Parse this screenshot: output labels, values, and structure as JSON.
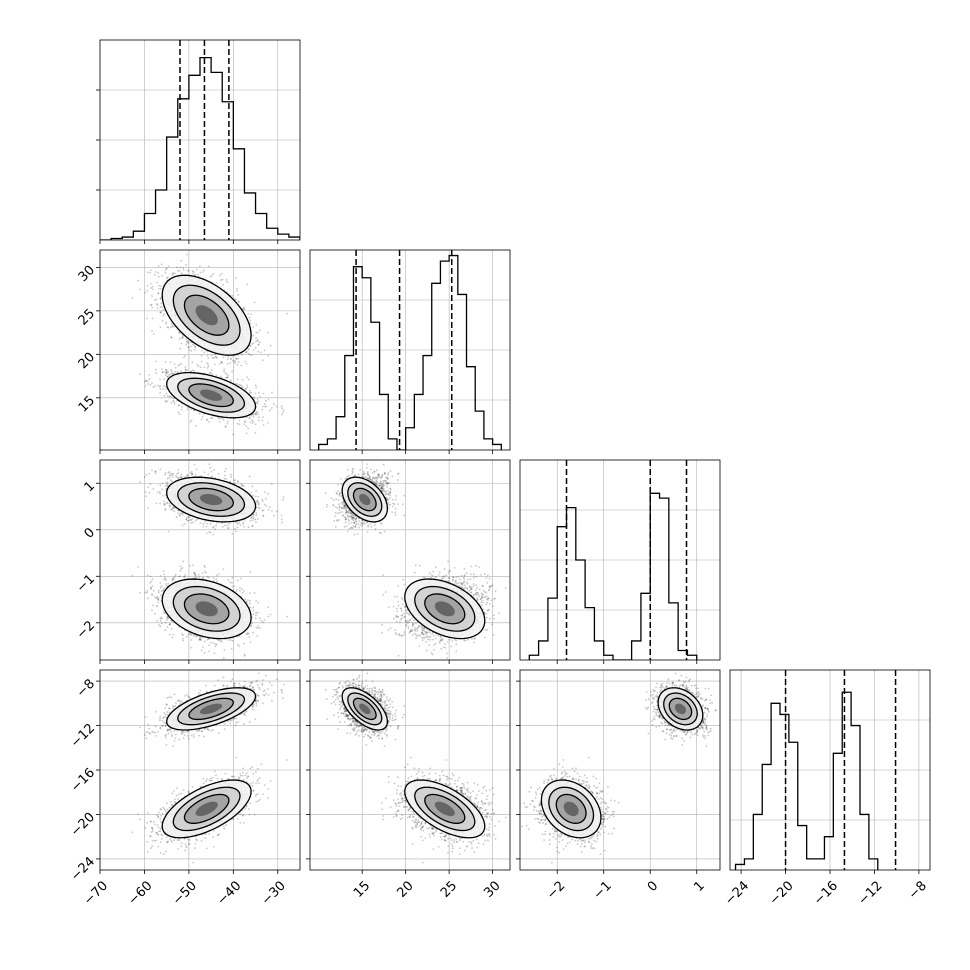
{
  "chart_data": {
    "type": "corner",
    "parameters": 4,
    "histograms": [
      {
        "param": 0,
        "xlim": [
          -70,
          -25
        ],
        "bins_start": -70,
        "bin_width": 2.5,
        "counts": [
          0,
          0.5,
          1,
          3,
          9,
          17,
          35,
          48,
          56,
          62,
          57,
          47,
          31,
          16,
          9,
          4,
          2,
          1
        ],
        "ymax": 68,
        "quantiles": [
          -52,
          -46.5,
          -41
        ]
      },
      {
        "param": 1,
        "xlim": [
          9,
          32
        ],
        "bins_start": 10,
        "bin_width": 1,
        "counts": [
          1,
          2,
          6,
          17,
          33,
          31,
          23,
          10,
          2,
          0,
          4,
          10,
          17,
          30,
          34,
          35,
          28,
          15,
          7,
          2,
          1
        ],
        "ymax": 36,
        "quantiles": [
          14.3,
          19.3,
          25.3
        ]
      },
      {
        "param": 2,
        "xlim": [
          -2.8,
          1.5
        ],
        "bins_start": -2.6,
        "bin_width": 0.2,
        "counts": [
          1,
          4,
          13,
          28,
          32,
          21,
          11,
          4,
          1,
          0,
          0,
          4,
          14,
          35,
          34,
          12,
          2,
          1
        ],
        "ymax": 42,
        "quantiles": [
          -1.8,
          0,
          0.78
        ]
      },
      {
        "param": 3,
        "xlim": [
          -25,
          -7
        ],
        "bins_start": -24.5,
        "bin_width": 0.8,
        "counts": [
          1,
          2,
          10,
          19,
          30,
          28,
          23,
          8,
          2,
          2,
          6,
          21,
          32,
          26,
          10,
          2
        ],
        "ymax": 36,
        "quantiles": [
          -20,
          -14.7,
          -10.1
        ]
      }
    ],
    "modes": [
      {
        "center": [
          -46,
          24.5,
          -1.7,
          -19.5
        ],
        "sd": [
          5,
          2.3,
          0.32,
          1.3
        ]
      },
      {
        "center": [
          -45,
          15.3,
          0.65,
          -10.5
        ],
        "sd": [
          5,
          1.3,
          0.24,
          0.95
        ]
      }
    ],
    "correlations": {
      "1_0": -0.5,
      "2_0": -0.3,
      "2_1": -0.4,
      "3_0": 0.6,
      "3_1": -0.6,
      "3_2": -0.3
    },
    "axes": [
      {
        "param": 0,
        "lim": [
          -70,
          -25
        ],
        "ticks": [
          -70,
          -60,
          -50,
          -40,
          -30
        ],
        "ticklabels": [
          "−70",
          "−60",
          "−50",
          "−40",
          "−30"
        ]
      },
      {
        "param": 1,
        "lim": [
          9,
          32
        ],
        "ticks": [
          15,
          20,
          25,
          30
        ],
        "ticklabels": [
          "15",
          "20",
          "25",
          "30"
        ]
      },
      {
        "param": 2,
        "lim": [
          -2.8,
          1.5
        ],
        "ticks": [
          -2,
          -1,
          0,
          1
        ],
        "ticklabels": [
          "−2",
          "−1",
          "0",
          "1"
        ]
      },
      {
        "param": 3,
        "lim": [
          -25,
          -7
        ],
        "ticks": [
          -24,
          -20,
          -16,
          -12,
          -8
        ],
        "ticklabels": [
          "−24",
          "−20",
          "−16",
          "−12",
          "−8"
        ]
      }
    ],
    "grid": true,
    "legend": "none"
  }
}
